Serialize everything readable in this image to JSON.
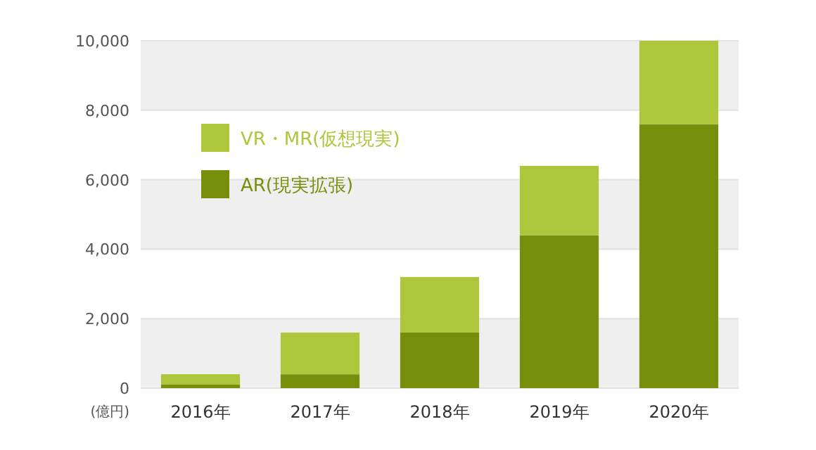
{
  "chart_data": {
    "type": "bar",
    "stacked": true,
    "ylabel": "(億円)",
    "categories": [
      "2016年",
      "2017年",
      "2018年",
      "2019年",
      "2020年"
    ],
    "series": [
      {
        "name": "AR(現実拡張)",
        "color": "#778e0a",
        "values": [
          100,
          400,
          1600,
          4400,
          7600
        ]
      },
      {
        "name": "VR・MR(仮想現実)",
        "color": "#adc63b",
        "values": [
          300,
          1200,
          1600,
          2000,
          2400
        ]
      }
    ],
    "ylim": [
      0,
      10000
    ],
    "yticks": [
      {
        "value": 0,
        "label": "0"
      },
      {
        "value": 2000,
        "label": "2,000"
      },
      {
        "value": 4000,
        "label": "4,000"
      },
      {
        "value": 6000,
        "label": "6,000"
      },
      {
        "value": 8000,
        "label": "8,000"
      },
      {
        "value": 10000,
        "label": "10,000"
      }
    ],
    "grid": "y",
    "legend": "top left"
  }
}
